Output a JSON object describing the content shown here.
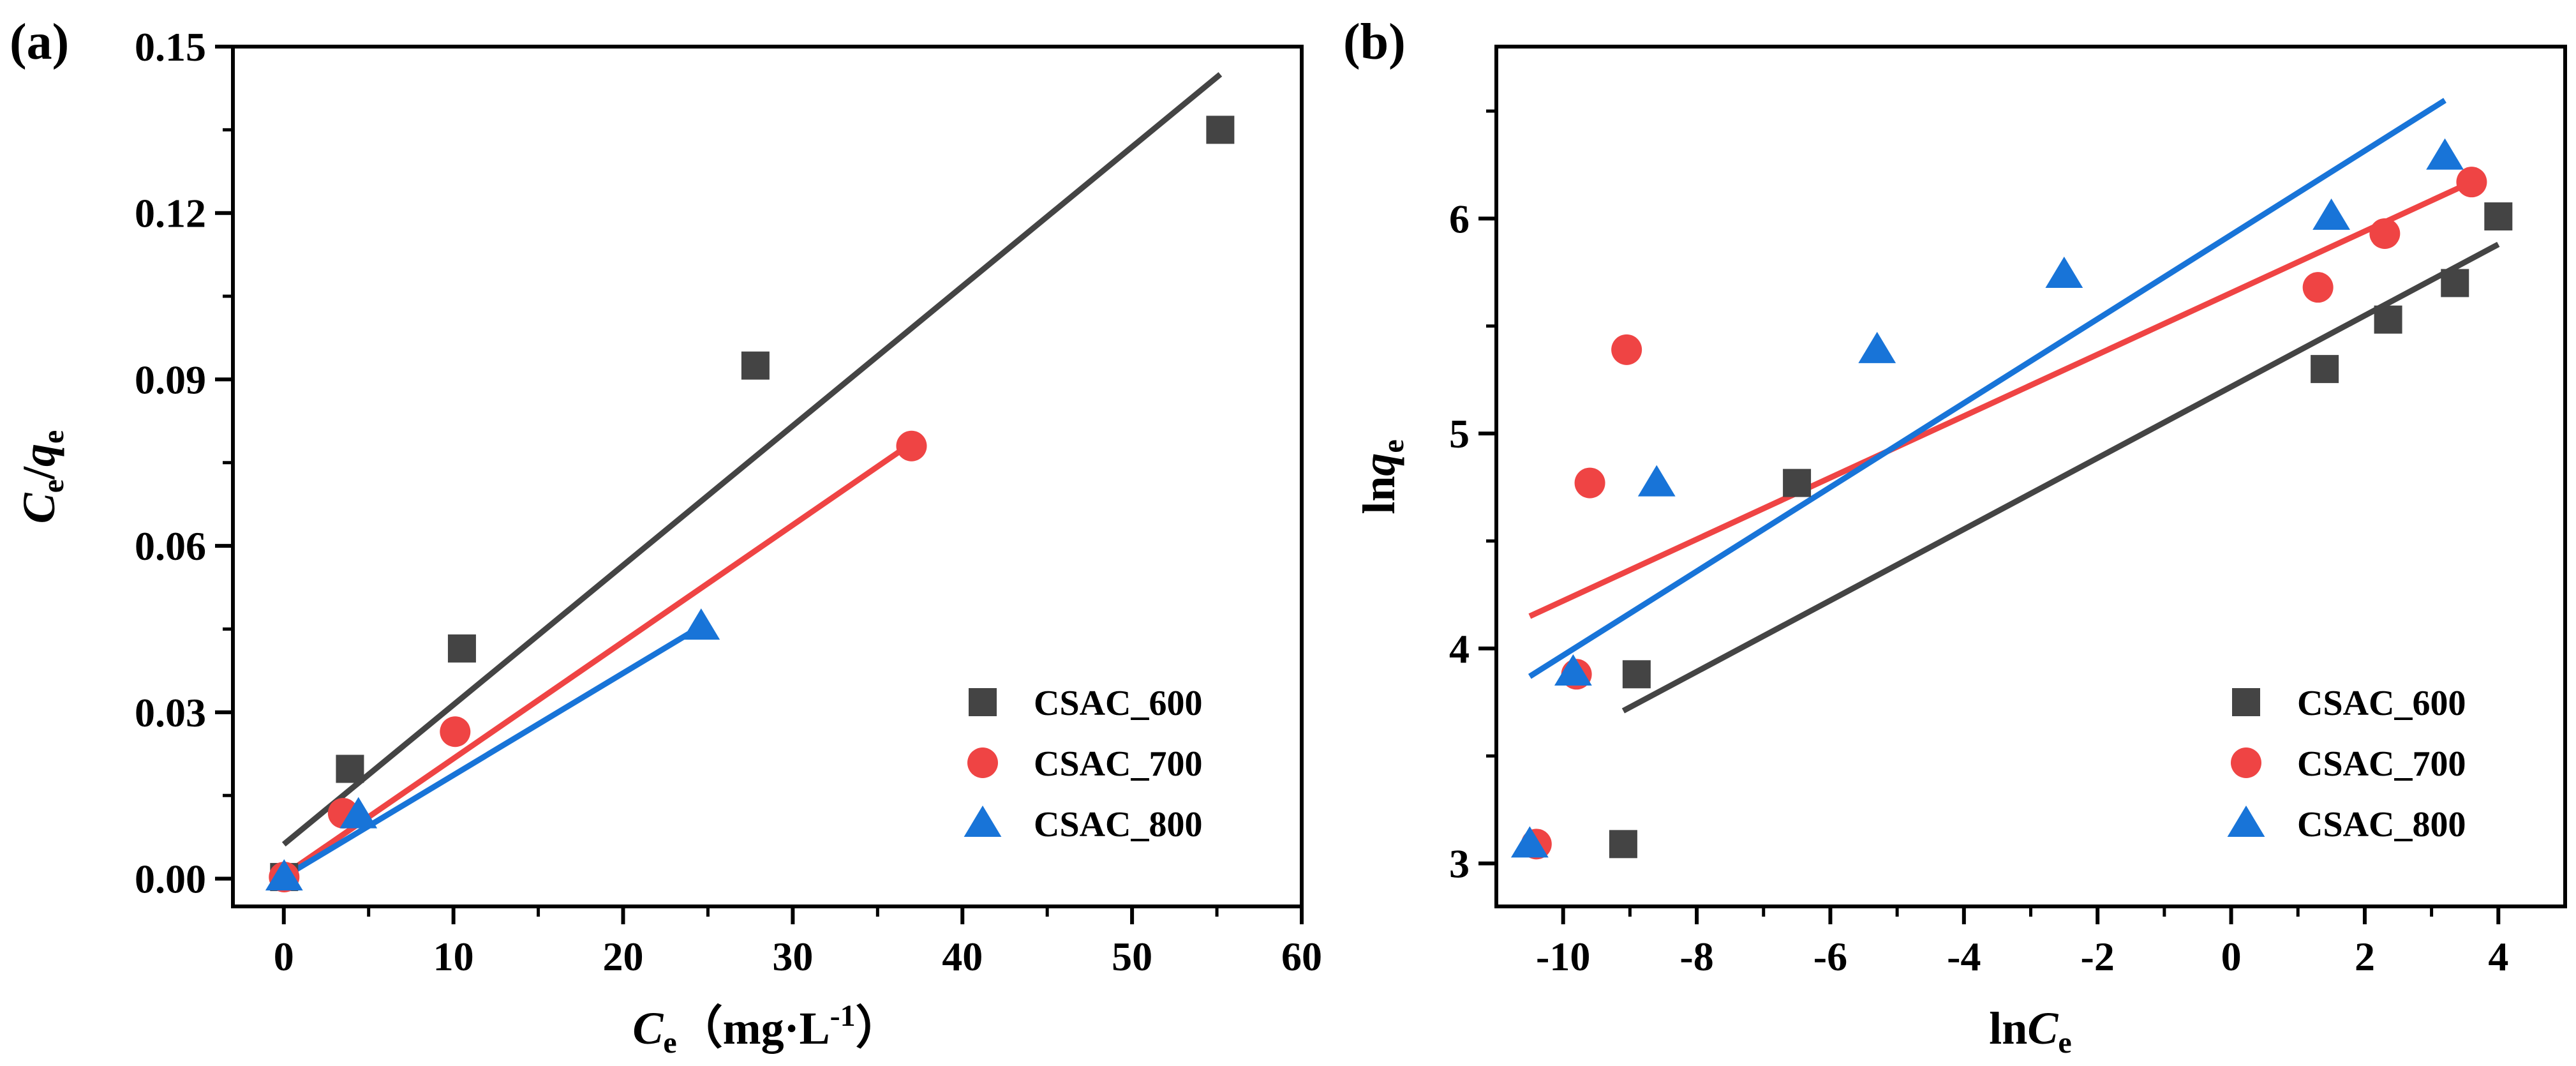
{
  "colors": {
    "CSAC_600": "#444444",
    "CSAC_700": "#ef4444",
    "CSAC_800": "#1874d8"
  },
  "chart_data": [
    {
      "type": "scatter",
      "panel_label": "(a)",
      "title": "",
      "xlabel": {
        "main": "C",
        "sub": "e",
        "units_open": "（mg·L",
        "sup": "-1",
        "units_close": "）"
      },
      "ylabel": {
        "a": "C",
        "a_sub": "e",
        "slash": "/",
        "b": "q",
        "b_sub": "e"
      },
      "xlim": [
        -3,
        60
      ],
      "ylim": [
        -0.005,
        0.15
      ],
      "xticks": [
        0,
        10,
        20,
        30,
        40,
        50,
        60
      ],
      "xtick_labels": [
        "0",
        "10",
        "20",
        "30",
        "40",
        "50",
        "60"
      ],
      "yticks": [
        0,
        0.03,
        0.06,
        0.09,
        0.12,
        0.15
      ],
      "ytick_labels": [
        "0.00",
        "0.03",
        "0.06",
        "0.09",
        "0.12",
        "0.15"
      ],
      "legend_position": "lower-right",
      "series": [
        {
          "name": "CSAC_600",
          "marker": "square",
          "points": [
            [
              0.02,
              0.0003
            ],
            [
              3.9,
              0.0198
            ],
            [
              10.5,
              0.0415
            ],
            [
              27.8,
              0.0925
            ],
            [
              55.2,
              0.135
            ]
          ],
          "fit": [
            [
              0,
              0.0062
            ],
            [
              55.2,
              0.145
            ]
          ]
        },
        {
          "name": "CSAC_700",
          "marker": "circle",
          "points": [
            [
              0.02,
              0.0003
            ],
            [
              3.5,
              0.0118
            ],
            [
              10.1,
              0.0265
            ],
            [
              37.0,
              0.078
            ]
          ],
          "fit": [
            [
              0,
              0.0006
            ],
            [
              37.0,
              0.0785
            ]
          ]
        },
        {
          "name": "CSAC_800",
          "marker": "triangle",
          "points": [
            [
              0.02,
              0.0003
            ],
            [
              4.4,
              0.0115
            ],
            [
              24.6,
              0.0455
            ]
          ],
          "fit": [
            [
              0,
              0.0003
            ],
            [
              24.6,
              0.0455
            ]
          ]
        }
      ]
    },
    {
      "type": "scatter",
      "panel_label": "(b)",
      "title": "",
      "xlabel": {
        "main": "ln",
        "italic": "C",
        "sub": "e"
      },
      "ylabel": {
        "main": "ln",
        "italic": "q",
        "sub": "e"
      },
      "xlim": [
        -11,
        5
      ],
      "ylim": [
        2.8,
        6.8
      ],
      "xticks": [
        -10,
        -8,
        -6,
        -4,
        -2,
        0,
        2,
        4
      ],
      "xtick_labels": [
        "-10",
        "-8",
        "-6",
        "-4",
        "-2",
        "0",
        "2",
        "4"
      ],
      "yticks": [
        3,
        4,
        5,
        6
      ],
      "ytick_labels": [
        "3",
        "4",
        "5",
        "6"
      ],
      "legend_position": "lower-right",
      "series": [
        {
          "name": "CSAC_600",
          "marker": "square",
          "points": [
            [
              -9.1,
              3.09
            ],
            [
              -8.9,
              3.88
            ],
            [
              -6.5,
              4.77
            ],
            [
              1.4,
              5.3
            ],
            [
              2.35,
              5.53
            ],
            [
              3.35,
              5.7
            ],
            [
              4.0,
              6.01
            ]
          ],
          "fit": [
            [
              -9.1,
              3.71
            ],
            [
              4.0,
              5.88
            ]
          ]
        },
        {
          "name": "CSAC_700",
          "marker": "circle",
          "points": [
            [
              -10.4,
              3.09
            ],
            [
              -9.8,
              3.88
            ],
            [
              -9.6,
              4.77
            ],
            [
              -9.05,
              5.39
            ],
            [
              1.3,
              5.68
            ],
            [
              2.3,
              5.93
            ],
            [
              3.6,
              6.17
            ]
          ],
          "fit": [
            [
              -10.5,
              4.15
            ],
            [
              3.6,
              6.17
            ]
          ]
        },
        {
          "name": "CSAC_800",
          "marker": "triangle",
          "points": [
            [
              -10.5,
              3.09
            ],
            [
              -9.85,
              3.89
            ],
            [
              -8.6,
              4.77
            ],
            [
              -5.3,
              5.39
            ],
            [
              -2.5,
              5.74
            ],
            [
              1.5,
              6.01
            ],
            [
              3.2,
              6.29
            ]
          ],
          "fit": [
            [
              -10.5,
              3.87
            ],
            [
              3.2,
              6.55
            ]
          ]
        }
      ]
    }
  ]
}
